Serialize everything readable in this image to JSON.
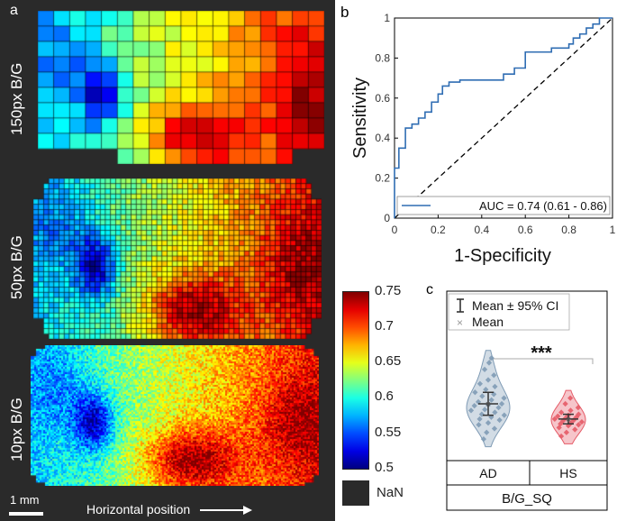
{
  "panel_a": {
    "letter": "a",
    "maps": [
      {
        "label": "150px B/G",
        "name": "map-150px"
      },
      {
        "label": "50px B/G",
        "name": "map-50px"
      },
      {
        "label": "10px B/G",
        "name": "map-10px"
      }
    ],
    "scale_bar": "1 mm",
    "axis_label": "Horizontal position"
  },
  "colorbar": {
    "ticks": [
      "0.75",
      "0.7",
      "0.65",
      "0.6",
      "0.55",
      "0.5"
    ],
    "nan_label": "NaN",
    "colors": {
      "nan": "#2a2a2a"
    }
  },
  "panel_b": {
    "letter": "b",
    "chart_data": {
      "type": "line",
      "title": "",
      "xlabel": "1-Specificity",
      "ylabel": "Sensitivity",
      "xlim": [
        0,
        1
      ],
      "ylim": [
        0,
        1
      ],
      "xticks": [
        "0",
        "0.2",
        "0.4",
        "0.6",
        "0.8",
        "1"
      ],
      "yticks": [
        "0",
        "0.2",
        "0.4",
        "0.6",
        "0.8",
        "1"
      ],
      "series": [
        {
          "name": "AUC = 0.74 (0.61 - 0.86)",
          "style": "solid",
          "color": "#2f6db3",
          "x": [
            0,
            0,
            0.02,
            0.02,
            0.05,
            0.05,
            0.08,
            0.08,
            0.11,
            0.11,
            0.14,
            0.14,
            0.17,
            0.17,
            0.2,
            0.2,
            0.22,
            0.22,
            0.25,
            0.25,
            0.3,
            0.3,
            0.5,
            0.5,
            0.55,
            0.55,
            0.6,
            0.6,
            0.72,
            0.72,
            0.8,
            0.8,
            0.82,
            0.82,
            0.85,
            0.85,
            0.88,
            0.88,
            0.91,
            0.91,
            0.94,
            0.94,
            1
          ],
          "y": [
            0,
            0.25,
            0.25,
            0.35,
            0.35,
            0.45,
            0.45,
            0.47,
            0.47,
            0.5,
            0.5,
            0.53,
            0.53,
            0.58,
            0.58,
            0.62,
            0.62,
            0.66,
            0.66,
            0.68,
            0.68,
            0.69,
            0.69,
            0.72,
            0.72,
            0.75,
            0.75,
            0.83,
            0.83,
            0.85,
            0.85,
            0.87,
            0.87,
            0.9,
            0.9,
            0.92,
            0.92,
            0.95,
            0.95,
            0.97,
            0.97,
            1.0,
            1.0
          ]
        },
        {
          "name": "chance",
          "style": "dashed",
          "color": "#000000",
          "x": [
            0,
            1
          ],
          "y": [
            0,
            1
          ]
        }
      ],
      "legend": "bottom-right"
    }
  },
  "panel_c": {
    "letter": "c",
    "legend": {
      "ci": "Mean ± 95% CI",
      "mean": "Mean"
    },
    "significance": "***",
    "chart_data": {
      "type": "violin",
      "categories": [
        "AD",
        "HS"
      ],
      "xlabel": "B/G_SQ",
      "series": [
        {
          "name": "AD",
          "color": "#7f9bb5",
          "mean": 0.582,
          "ci": [
            0.57,
            0.594
          ],
          "values": [
            0.545,
            0.552,
            0.556,
            0.56,
            0.562,
            0.565,
            0.566,
            0.568,
            0.57,
            0.571,
            0.573,
            0.575,
            0.576,
            0.578,
            0.58,
            0.581,
            0.582,
            0.584,
            0.586,
            0.588,
            0.59,
            0.592,
            0.594,
            0.597,
            0.6,
            0.603,
            0.607,
            0.612,
            0.618,
            0.625,
            0.63
          ]
        },
        {
          "name": "HS",
          "color": "#e55a66",
          "mean": 0.566,
          "ci": [
            0.561,
            0.571
          ],
          "values": [
            0.548,
            0.552,
            0.555,
            0.557,
            0.559,
            0.56,
            0.561,
            0.562,
            0.563,
            0.564,
            0.565,
            0.566,
            0.567,
            0.568,
            0.569,
            0.57,
            0.571,
            0.573,
            0.575,
            0.578,
            0.582,
            0.588
          ]
        }
      ]
    }
  }
}
